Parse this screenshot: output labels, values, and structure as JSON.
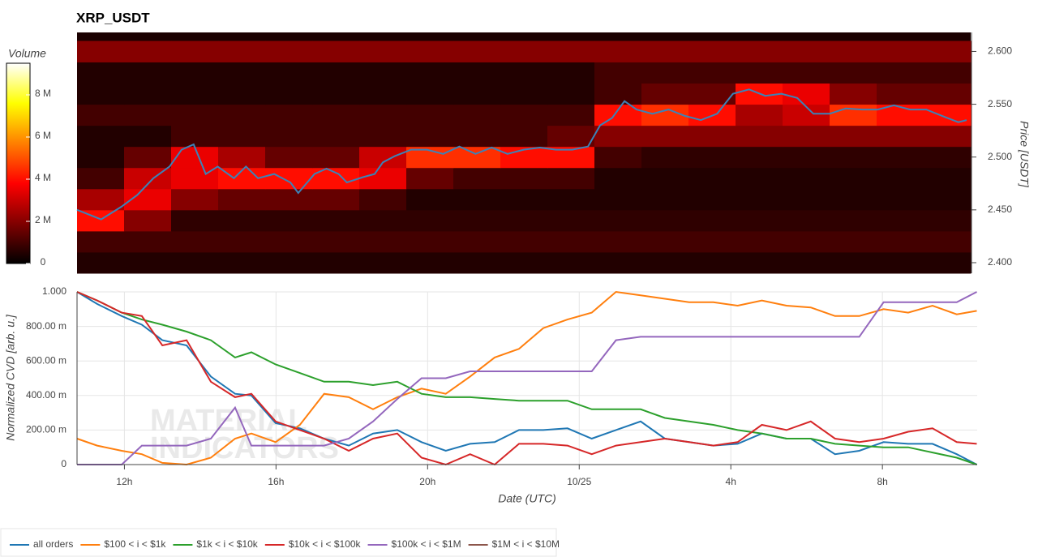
{
  "chart_data": [
    {
      "type": "heatmap",
      "title": "XRP_USDT",
      "y2label": "Price [USDT]",
      "xlim": [
        10.75,
        34.5
      ],
      "y2lim": [
        2.39,
        2.618
      ],
      "y2ticks": [
        {
          "value": 2.4,
          "label": "2.400"
        },
        {
          "value": 2.45,
          "label": "2.450"
        },
        {
          "value": 2.5,
          "label": "2.500"
        },
        {
          "value": 2.55,
          "label": "2.550"
        },
        {
          "value": 2.6,
          "label": "2.600"
        }
      ],
      "colorbar": {
        "label": "Volume",
        "lim": [
          0,
          9500000
        ],
        "ticks": [
          0,
          {
            "value": 2000000,
            "label": "2 M"
          },
          {
            "value": 4000000,
            "label": "4 M"
          },
          {
            "value": 6000000,
            "label": "6 M"
          },
          {
            "value": 8000000,
            "label": "8 M"
          }
        ]
      },
      "x_bins": [
        10.75,
        12,
        13.25,
        14.5,
        15.75,
        17,
        18.25,
        19.5,
        20.75,
        22,
        23.25,
        24.5,
        25.75,
        27,
        28.25,
        29.5,
        30.75,
        32,
        33.25,
        34.5
      ],
      "price_levels": [
        2.4,
        2.42,
        2.44,
        2.46,
        2.48,
        2.5,
        2.52,
        2.54,
        2.56,
        2.58,
        2.6
      ],
      "z": [
        [
          500000,
          500000,
          500000,
          500000,
          500000,
          500000,
          500000,
          500000,
          500000,
          500000,
          500000,
          500000,
          500000,
          500000,
          500000,
          500000,
          500000,
          500000,
          500000
        ],
        [
          1000000,
          1000000,
          1000000,
          1000000,
          1000000,
          1000000,
          1000000,
          1000000,
          1000000,
          1000000,
          1000000,
          1000000,
          1000000,
          1000000,
          1000000,
          1000000,
          1000000,
          1000000,
          1000000
        ],
        [
          4000000,
          2000000,
          700000,
          700000,
          700000,
          700000,
          700000,
          700000,
          700000,
          700000,
          700000,
          700000,
          700000,
          700000,
          700000,
          700000,
          700000,
          700000,
          700000
        ],
        [
          2500000,
          3500000,
          2000000,
          1500000,
          1500000,
          1500000,
          1000000,
          500000,
          500000,
          500000,
          500000,
          500000,
          500000,
          500000,
          500000,
          500000,
          500000,
          500000,
          500000
        ],
        [
          1000000,
          3000000,
          3500000,
          4000000,
          4000000,
          4000000,
          3500000,
          1500000,
          1000000,
          1000000,
          1000000,
          500000,
          500000,
          500000,
          500000,
          500000,
          500000,
          500000,
          500000
        ],
        [
          500000,
          1500000,
          3500000,
          2500000,
          1500000,
          1500000,
          3000000,
          4500000,
          4500000,
          4000000,
          4000000,
          1000000,
          700000,
          700000,
          700000,
          700000,
          700000,
          700000,
          700000
        ],
        [
          500000,
          500000,
          1000000,
          1000000,
          1000000,
          1000000,
          1000000,
          1000000,
          1000000,
          1000000,
          1500000,
          2000000,
          2000000,
          2000000,
          2000000,
          2000000,
          2000000,
          2000000,
          2000000
        ],
        [
          1000000,
          1000000,
          1000000,
          1000000,
          1000000,
          1000000,
          1000000,
          1000000,
          1000000,
          1000000,
          1000000,
          4000000,
          4500000,
          4000000,
          2500000,
          3000000,
          4500000,
          4000000,
          4000000
        ],
        [
          500000,
          500000,
          500000,
          500000,
          500000,
          500000,
          500000,
          500000,
          500000,
          500000,
          500000,
          1000000,
          1500000,
          1500000,
          4000000,
          3500000,
          2000000,
          1500000,
          1500000
        ],
        [
          500000,
          500000,
          500000,
          500000,
          500000,
          500000,
          500000,
          500000,
          500000,
          500000,
          500000,
          1000000,
          1000000,
          1000000,
          1000000,
          1000000,
          1000000,
          1000000,
          1000000
        ],
        [
          2000000,
          2000000,
          2000000,
          2000000,
          2000000,
          2000000,
          2000000,
          2000000,
          2000000,
          2000000,
          2000000,
          2000000,
          2000000,
          2000000,
          2000000,
          2000000,
          2000000,
          2000000,
          2000000
        ]
      ],
      "series": [
        {
          "color": "#3b83b8",
          "axis": "y2",
          "x": [
            10.75,
            11.39,
            11.93,
            12.35,
            12.78,
            13.21,
            13.53,
            13.85,
            14.17,
            14.49,
            14.92,
            15.24,
            15.56,
            15.99,
            16.42,
            16.63,
            17.06,
            17.38,
            17.7,
            17.92,
            18.35,
            18.66,
            18.88,
            19.2,
            19.63,
            20.05,
            20.48,
            20.91,
            21.34,
            21.77,
            22.19,
            22.62,
            23.05,
            23.48,
            23.91,
            24.33,
            24.65,
            24.97,
            25.3,
            25.62,
            26.04,
            26.47,
            26.9,
            27.33,
            27.76,
            28.18,
            28.61,
            29.04,
            29.47,
            29.89,
            30.32,
            30.75,
            31.18,
            31.61,
            32.03,
            32.46,
            32.89,
            33.32,
            33.74,
            34.17,
            34.39
          ],
          "values": [
            2.45,
            2.441,
            2.453,
            2.464,
            2.48,
            2.491,
            2.507,
            2.512,
            2.484,
            2.491,
            2.48,
            2.491,
            2.48,
            2.484,
            2.476,
            2.466,
            2.484,
            2.489,
            2.484,
            2.476,
            2.481,
            2.484,
            2.495,
            2.501,
            2.507,
            2.507,
            2.503,
            2.51,
            2.503,
            2.509,
            2.503,
            2.507,
            2.509,
            2.507,
            2.507,
            2.51,
            2.53,
            2.537,
            2.553,
            2.545,
            2.541,
            2.545,
            2.539,
            2.535,
            2.541,
            2.56,
            2.564,
            2.558,
            2.56,
            2.556,
            2.541,
            2.541,
            2.546,
            2.545,
            2.545,
            2.549,
            2.545,
            2.545,
            2.539,
            2.533,
            2.535
          ]
        }
      ]
    },
    {
      "type": "line",
      "xlabel": "Date (UTC)",
      "ylabel": "Normalized CVD [arb. u.]",
      "watermark": [
        "MATERIAL",
        "INDICATORS"
      ],
      "xlim": [
        10.75,
        34.5
      ],
      "xticks": [
        {
          "value": 12,
          "label": "12h"
        },
        {
          "value": 16,
          "label": "16h"
        },
        {
          "value": 20,
          "label": "20h"
        },
        {
          "value": 24,
          "label": "10/25"
        },
        {
          "value": 28,
          "label": "4h"
        },
        {
          "value": 32,
          "label": "8h"
        }
      ],
      "ylim": [
        0,
        1
      ],
      "yticks": [
        0,
        {
          "value": 0.2,
          "label": "200.00 m"
        },
        {
          "value": 0.4,
          "label": "400.00 m"
        },
        {
          "value": 0.6,
          "label": "600.00 m"
        },
        {
          "value": 0.8,
          "label": "800.00 m"
        },
        {
          "value": 1,
          "label": "1.000"
        }
      ],
      "grid": true,
      "x": [
        10.75,
        11.28,
        11.93,
        12.46,
        13.0,
        13.64,
        14.28,
        14.92,
        15.35,
        15.99,
        16.63,
        17.27,
        17.92,
        18.56,
        19.2,
        19.84,
        20.48,
        21.12,
        21.77,
        22.41,
        23.05,
        23.69,
        24.33,
        24.97,
        25.62,
        26.26,
        26.9,
        27.54,
        28.18,
        28.82,
        29.47,
        30.11,
        30.75,
        31.39,
        32.03,
        32.68,
        33.32,
        33.96,
        34.49
      ],
      "series": [
        {
          "name": "all orders",
          "color": "#1f77b4",
          "values": [
            1.0,
            0.93,
            0.86,
            0.81,
            0.72,
            0.69,
            0.51,
            0.41,
            0.4,
            0.24,
            0.21,
            0.15,
            0.11,
            0.18,
            0.2,
            0.13,
            0.08,
            0.12,
            0.13,
            0.2,
            0.2,
            0.21,
            0.15,
            0.2,
            0.25,
            0.15,
            0.13,
            0.11,
            0.12,
            0.18,
            0.15,
            0.15,
            0.06,
            0.08,
            0.13,
            0.12,
            0.12,
            0.06,
            0
          ]
        },
        {
          "name": "$100 < i < $1k",
          "color": "#ff7f0e",
          "values": [
            0.15,
            0.11,
            0.08,
            0.06,
            0.01,
            0,
            0.04,
            0.15,
            0.18,
            0.13,
            0.23,
            0.41,
            0.39,
            0.32,
            0.39,
            0.44,
            0.41,
            0.51,
            0.62,
            0.67,
            0.79,
            0.84,
            0.88,
            1.0,
            0.98,
            0.96,
            0.94,
            0.94,
            0.92,
            0.95,
            0.92,
            0.91,
            0.86,
            0.86,
            0.9,
            0.88,
            0.92,
            0.87,
            0.89
          ]
        },
        {
          "name": "$1k < i < $10k",
          "color": "#2ca02c",
          "values": [
            1.0,
            0.95,
            0.88,
            0.84,
            0.81,
            0.77,
            0.72,
            0.62,
            0.65,
            0.58,
            0.53,
            0.48,
            0.48,
            0.46,
            0.48,
            0.41,
            0.39,
            0.39,
            0.38,
            0.37,
            0.37,
            0.37,
            0.32,
            0.32,
            0.32,
            0.27,
            0.25,
            0.23,
            0.2,
            0.18,
            0.15,
            0.15,
            0.12,
            0.11,
            0.1,
            0.1,
            0.07,
            0.04,
            0
          ]
        },
        {
          "name": "$10k < i < $100k",
          "color": "#d62728",
          "values": [
            1.0,
            0.95,
            0.88,
            0.86,
            0.69,
            0.72,
            0.48,
            0.39,
            0.41,
            0.25,
            0.2,
            0.15,
            0.08,
            0.15,
            0.18,
            0.04,
            0,
            0.06,
            0,
            0.12,
            0.12,
            0.11,
            0.06,
            0.11,
            0.13,
            0.15,
            0.13,
            0.11,
            0.13,
            0.23,
            0.2,
            0.25,
            0.15,
            0.13,
            0.15,
            0.19,
            0.21,
            0.13,
            0.12
          ]
        },
        {
          "name": "$100k < i < $1M",
          "color": "#9467bd",
          "values": [
            0,
            0,
            0,
            0.11,
            0.11,
            0.11,
            0.15,
            0.33,
            0.11,
            0.11,
            0.11,
            0.11,
            0.15,
            0.25,
            0.38,
            0.5,
            0.5,
            0.54,
            0.54,
            0.54,
            0.54,
            0.54,
            0.54,
            0.72,
            0.74,
            0.74,
            0.74,
            0.74,
            0.74,
            0.74,
            0.74,
            0.74,
            0.74,
            0.74,
            0.94,
            0.94,
            0.94,
            0.94,
            1.0
          ]
        },
        {
          "name": "$1M < i < $10M",
          "color": "#8c564b",
          "values": [
            null,
            null,
            null,
            null,
            null,
            null,
            null,
            null,
            null,
            null,
            null,
            null,
            null,
            null,
            null,
            null,
            null,
            null,
            null,
            null,
            null,
            null,
            null,
            null,
            null,
            null,
            null,
            null,
            null,
            null,
            null,
            null,
            null,
            null,
            null,
            null,
            null,
            null,
            null
          ]
        }
      ]
    }
  ]
}
